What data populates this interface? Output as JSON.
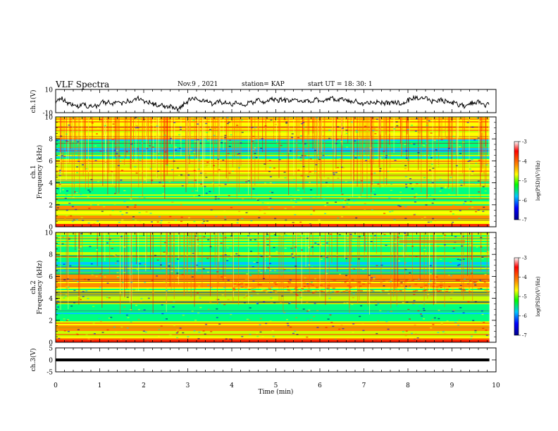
{
  "header": {
    "title": "VLF Spectra",
    "date": "Nov.9 , 2021",
    "station": "station= KAP",
    "start": "start UT = 18: 30: 1"
  },
  "chart_data": [
    {
      "type": "line",
      "panel": "ch1-waveform",
      "ylabel": "ch.1(V)",
      "ylim": [
        -10,
        10
      ],
      "yticks": [
        "10",
        "-10"
      ],
      "xlim": [
        0,
        10
      ],
      "series_color": "#000000"
    },
    {
      "type": "heatmap",
      "panel": "ch1-spectrogram",
      "ylabel_top": "ch.1",
      "ylabel": "Frequency (kHz)",
      "ylim": [
        0,
        10
      ],
      "yticks": [
        "0",
        "2",
        "4",
        "6",
        "8",
        "10"
      ],
      "xlim": [
        0,
        9.85
      ],
      "colorbar": {
        "label": "log(PSD)(V²/Hz)",
        "range": [
          -7,
          -3
        ],
        "ticks": [
          "-3",
          "-4",
          "-5",
          "-6",
          "-7"
        ]
      }
    },
    {
      "type": "heatmap",
      "panel": "ch2-spectrogram",
      "ylabel_top": "ch.2",
      "ylabel": "Frequency (kHz)",
      "ylim": [
        0,
        10
      ],
      "yticks": [
        "0",
        "2",
        "4",
        "6",
        "8",
        "10"
      ],
      "xlim": [
        0,
        9.85
      ],
      "colorbar": {
        "label": "log(PSD)(V²/Hz)",
        "range": [
          -7,
          -3
        ],
        "ticks": [
          "-3",
          "-4",
          "-5",
          "-6",
          "-7"
        ]
      }
    },
    {
      "type": "line",
      "panel": "ch3-waveform",
      "ylabel": "ch.3(V)",
      "ylim": [
        -5,
        5
      ],
      "yticks": [
        "5",
        "0",
        "-5"
      ],
      "xlim": [
        0,
        10
      ],
      "band": [
        -0.6,
        0.6
      ]
    }
  ],
  "xaxis": {
    "label": "Time (min)",
    "ticks": [
      "0",
      "1",
      "2",
      "3",
      "4",
      "5",
      "6",
      "7",
      "8",
      "9",
      "10"
    ]
  },
  "colormap": [
    "#00008c",
    "#0000ff",
    "#00c8ff",
    "#00ff80",
    "#c8ff00",
    "#ffff00",
    "#ff8c00",
    "#ff0000",
    "#ffffff"
  ]
}
